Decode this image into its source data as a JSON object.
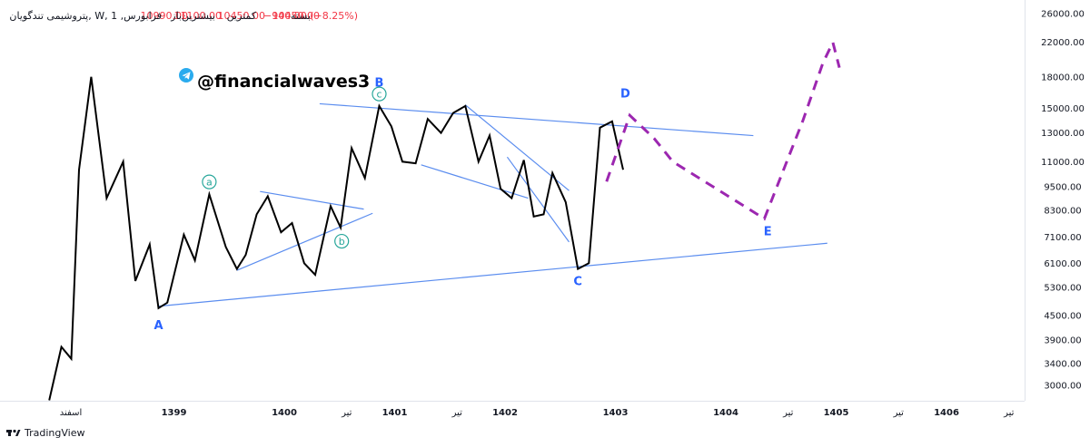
{
  "header": {
    "title": "پتروشیمی تندگویان, W, فرابورس, 1",
    "open_label": "باز",
    "open_value": "10990.00",
    "high_label": "بیشترین",
    "high_value": "11100.00",
    "low_label": "کمترین",
    "low_value": "10450.00",
    "close_label": "بسته",
    "close_value": "10450.00",
    "change": "−940.00 (−8.25%)"
  },
  "watermark": {
    "handle": "@financialwaves3",
    "icon": "telegram-icon"
  },
  "brand": {
    "name": "TradingView",
    "icon": "tradingview-logo-icon"
  },
  "colors": {
    "price_line": "#000000",
    "trendline": "#5b8def",
    "forecast": "#9c27b0",
    "wave_label": "#2962ff",
    "sub_wave_label": "#26a69a",
    "down_text": "#f23645"
  },
  "chart_data": {
    "type": "line",
    "y_scale": "log",
    "ylim": [
      2600,
      27500
    ],
    "y_ticks": [
      3000,
      3400,
      3900,
      4500,
      5300,
      6100,
      7100,
      8300,
      9500,
      11000,
      13000,
      15000,
      18000,
      22000,
      26000
    ],
    "y_tick_labels": [
      "3000.00",
      "3400.00",
      "3900.00",
      "4500.00",
      "5300.00",
      "6100.00",
      "7100.00",
      "8300.00",
      "9500.00",
      "11000.00",
      "13000.00",
      "15000.00",
      "18000.00",
      "22000.00",
      "26000.00"
    ],
    "x_ticks": [
      {
        "label": "اسفند",
        "t": 0.0,
        "bold": false
      },
      {
        "label": "1399",
        "t": 1.0,
        "bold": true
      },
      {
        "label": "1400",
        "t": 2.0,
        "bold": true
      },
      {
        "label": "تیر",
        "t": 2.5,
        "bold": false
      },
      {
        "label": "1401",
        "t": 3.0,
        "bold": true
      },
      {
        "label": "تیر",
        "t": 3.5,
        "bold": false
      },
      {
        "label": "1402",
        "t": 4.0,
        "bold": true
      },
      {
        "label": "1403",
        "t": 5.0,
        "bold": true
      },
      {
        "label": "1404",
        "t": 6.0,
        "bold": true
      },
      {
        "label": "تیر",
        "t": 6.5,
        "bold": false
      },
      {
        "label": "1405",
        "t": 7.0,
        "bold": true
      },
      {
        "label": "تیر",
        "t": 7.5,
        "bold": false
      },
      {
        "label": "1406",
        "t": 8.0,
        "bold": true
      },
      {
        "label": "تیر",
        "t": 8.5,
        "bold": false
      }
    ],
    "series": [
      {
        "points": [
          [
            -0.13,
            2750
          ],
          [
            -0.02,
            3750
          ],
          [
            0.07,
            3500
          ],
          [
            0.14,
            10500
          ],
          [
            0.25,
            18000
          ],
          [
            0.39,
            8900
          ],
          [
            0.54,
            11000
          ],
          [
            0.65,
            5500
          ],
          [
            0.78,
            6800
          ],
          [
            0.86,
            4700
          ],
          [
            0.94,
            4850
          ],
          [
            1.09,
            7200
          ],
          [
            1.19,
            6200
          ],
          [
            1.32,
            9100
          ],
          [
            1.47,
            6700
          ],
          [
            1.57,
            5900
          ],
          [
            1.65,
            6400
          ],
          [
            1.75,
            8100
          ],
          [
            1.85,
            9000
          ],
          [
            1.97,
            7300
          ],
          [
            2.07,
            7700
          ],
          [
            2.18,
            6100
          ],
          [
            2.28,
            5700
          ],
          [
            2.42,
            8500
          ],
          [
            2.51,
            7500
          ],
          [
            2.61,
            11900
          ],
          [
            2.73,
            10000
          ],
          [
            2.86,
            15200
          ],
          [
            2.97,
            13500
          ],
          [
            3.07,
            11000
          ],
          [
            3.19,
            10900
          ],
          [
            3.3,
            14100
          ],
          [
            3.42,
            13000
          ],
          [
            3.53,
            14600
          ],
          [
            3.64,
            15200
          ],
          [
            3.76,
            11000
          ],
          [
            3.86,
            12800
          ],
          [
            3.96,
            9400
          ],
          [
            4.06,
            8900
          ],
          [
            4.17,
            11100
          ],
          [
            4.26,
            8000
          ],
          [
            4.35,
            8100
          ],
          [
            4.43,
            10300
          ],
          [
            4.55,
            8700
          ],
          [
            4.66,
            5900
          ],
          [
            4.76,
            6100
          ],
          [
            4.86,
            13400
          ],
          [
            4.97,
            13900
          ],
          [
            5.07,
            10500
          ]
        ]
      },
      {
        "style": "dashed",
        "points": [
          [
            4.92,
            9800
          ],
          [
            5.13,
            14400
          ],
          [
            5.35,
            12600
          ],
          [
            5.52,
            11000
          ],
          [
            6.35,
            7900
          ],
          [
            6.7,
            14000
          ],
          [
            6.88,
            19500
          ],
          [
            6.97,
            22000
          ],
          [
            7.03,
            19000
          ]
        ]
      }
    ],
    "trendlines": [
      {
        "from": [
          0.86,
          4750
        ],
        "to": [
          6.92,
          6850
        ]
      },
      {
        "from": [
          1.57,
          5850
        ],
        "to": [
          2.8,
          8150
        ]
      },
      {
        "from": [
          1.78,
          9250
        ],
        "to": [
          2.72,
          8350
        ]
      },
      {
        "from": [
          2.32,
          15400
        ],
        "to": [
          6.25,
          12800
        ]
      },
      {
        "from": [
          3.24,
          10800
        ],
        "to": [
          4.21,
          8900
        ]
      },
      {
        "from": [
          3.64,
          15300
        ],
        "to": [
          4.58,
          9300
        ]
      },
      {
        "from": [
          4.02,
          11300
        ],
        "to": [
          4.58,
          6900
        ]
      }
    ],
    "annotations": [
      {
        "text": "A",
        "t": 0.86,
        "v": 4250,
        "kind": "major"
      },
      {
        "text": "B",
        "t": 2.86,
        "v": 17400,
        "kind": "major"
      },
      {
        "text": "C",
        "t": 4.66,
        "v": 5480,
        "kind": "major"
      },
      {
        "text": "D",
        "t": 5.09,
        "v": 16300,
        "kind": "major"
      },
      {
        "text": "E",
        "t": 6.38,
        "v": 7330,
        "kind": "major"
      },
      {
        "text": "a",
        "t": 1.32,
        "v": 9780,
        "kind": "minor"
      },
      {
        "text": "b",
        "t": 2.52,
        "v": 6930,
        "kind": "minor"
      },
      {
        "text": "c",
        "t": 2.86,
        "v": 16300,
        "kind": "minor"
      }
    ]
  }
}
